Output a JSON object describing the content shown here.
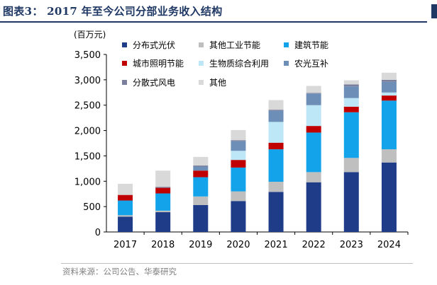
{
  "header": {
    "title": "图表3： 2017 年至今公司分部业务收入结构"
  },
  "footer": {
    "source": "资料来源：公司公告、华泰研究"
  },
  "chart_data": {
    "type": "bar",
    "stacked": true,
    "unit_label": "(百万元)",
    "categories": [
      "2017",
      "2018",
      "2019",
      "2020",
      "2021",
      "2022",
      "2023",
      "2024"
    ],
    "ylim": [
      0,
      3500
    ],
    "yticks": [
      "0",
      "500",
      "1,000",
      "1,500",
      "2,000",
      "2,500",
      "3,000",
      "3,500"
    ],
    "ytick_values": [
      0,
      500,
      1000,
      1500,
      2000,
      2500,
      3000,
      3500
    ],
    "grid": false,
    "legend_position": "top-left",
    "series": [
      {
        "name": "分布式光伏",
        "color": "#1f3c88",
        "values": [
          300,
          390,
          530,
          610,
          790,
          980,
          1180,
          1370
        ]
      },
      {
        "name": "其他工业节能",
        "color": "#bfbfbf",
        "values": [
          30,
          30,
          170,
          190,
          200,
          200,
          280,
          260
        ]
      },
      {
        "name": "建筑节能",
        "color": "#12a3ea",
        "values": [
          290,
          340,
          380,
          470,
          640,
          780,
          900,
          960
        ]
      },
      {
        "name": "城市照明节能",
        "color": "#c00000",
        "values": [
          110,
          110,
          130,
          150,
          130,
          130,
          110,
          100
        ]
      },
      {
        "name": "生物质综合利用",
        "color": "#bde6f7",
        "values": [
          0,
          0,
          0,
          180,
          410,
          410,
          170,
          60
        ]
      },
      {
        "name": "农光互补",
        "color": "#6d8fb7",
        "values": [
          0,
          0,
          80,
          190,
          220,
          230,
          230,
          210
        ]
      },
      {
        "name": "分散式风电",
        "color": "#7a7f9d",
        "values": [
          0,
          20,
          20,
          20,
          20,
          10,
          40,
          40
        ]
      },
      {
        "name": "其他",
        "color": "#d9d9d9",
        "values": [
          220,
          320,
          170,
          200,
          190,
          140,
          80,
          140
        ]
      }
    ]
  }
}
